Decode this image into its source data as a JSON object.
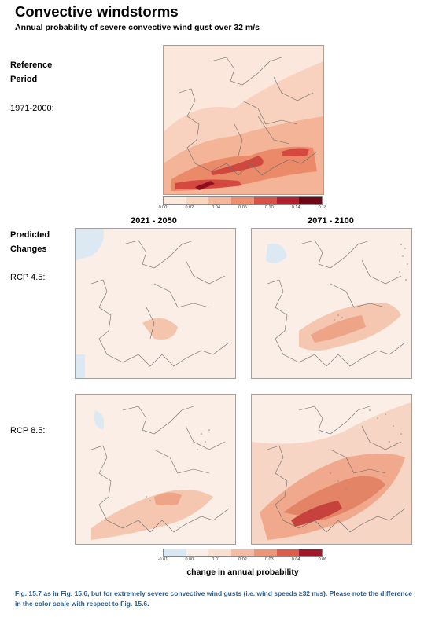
{
  "header": {
    "title": "Convective windstorms",
    "subtitle": "Annual probability of severe convective wind gust over 32 m/s"
  },
  "labels": {
    "reference_line1": "Reference",
    "reference_line2": "Period",
    "reference_years": "1971-2000:",
    "predicted_line1": "Predicted",
    "predicted_line2": "Changes",
    "rcp45": "RCP 4.5:",
    "rcp85": "RCP 8.5:"
  },
  "columns": {
    "near": "2021 - 2050",
    "far": "2071 - 2100"
  },
  "reference_colorbar": {
    "ticks": [
      "0.00",
      "0.02",
      "0.04",
      "0.06",
      "0.10",
      "0.14",
      "0.18"
    ],
    "colors": [
      "#fde9dc",
      "#fbd6bf",
      "#f6b89b",
      "#ee8e6e",
      "#d95047",
      "#b21f2e",
      "#6e0616"
    ]
  },
  "change_colorbar": {
    "title": "change in annual probability",
    "ticks": [
      "-0.01",
      "0.00",
      "0.01",
      "0.02",
      "0.03",
      "0.04",
      "0.06"
    ],
    "colors": [
      "#d7e7f3",
      "#fbeee6",
      "#f9dfd0",
      "#f4bba2",
      "#ec9677",
      "#dc5d4c",
      "#a3172a"
    ]
  },
  "caption": "Fig. 15.7 as in Fig. 15.6, but for extremely severe convective wind gusts (i.e. wind speeds ≥32 m/s). Please note the difference in the color scale with respect to Fig. 15.6."
}
